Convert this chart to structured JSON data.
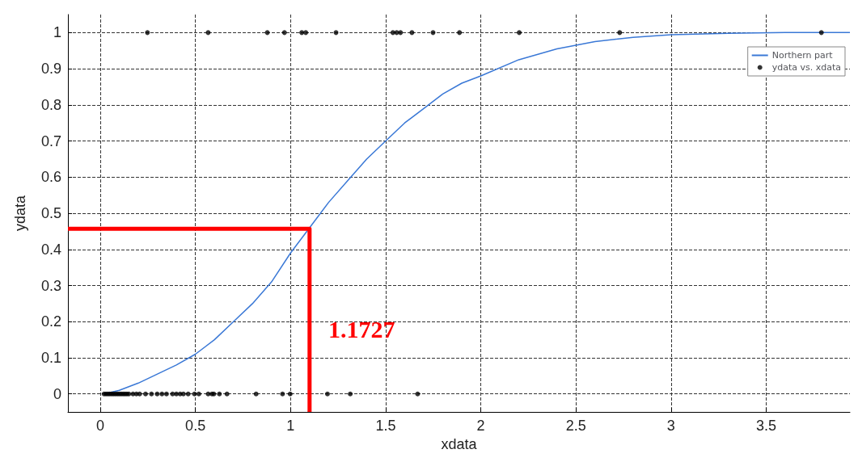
{
  "chart_data": {
    "type": "scatter",
    "xlabel": "xdata",
    "ylabel": "ydata",
    "xlim": [
      -0.17,
      3.94
    ],
    "ylim": [
      -0.05,
      1.05
    ],
    "xticks": [
      0,
      0.5,
      1,
      1.5,
      2,
      2.5,
      3,
      3.5
    ],
    "yticks": [
      0,
      0.1,
      0.2,
      0.3,
      0.4,
      0.5,
      0.6,
      0.7,
      0.8,
      0.9,
      1
    ],
    "grid": true,
    "legend": "top right",
    "annotations": [
      "1.1727"
    ],
    "series": [
      {
        "name": "Northern part",
        "type": "line",
        "color": "#3a78d6",
        "marker": "none",
        "line_style": "solid",
        "x": [
          0.02,
          0.1,
          0.2,
          0.3,
          0.4,
          0.5,
          0.6,
          0.7,
          0.8,
          0.9,
          1.0,
          1.1,
          1.2,
          1.3,
          1.4,
          1.5,
          1.6,
          1.7,
          1.8,
          1.9,
          2.0,
          2.2,
          2.4,
          2.6,
          2.8,
          3.0,
          3.3,
          3.6,
          3.94
        ],
        "values": [
          0,
          0.01,
          0.03,
          0.055,
          0.08,
          0.11,
          0.15,
          0.2,
          0.25,
          0.31,
          0.39,
          0.46,
          0.53,
          0.59,
          0.65,
          0.7,
          0.75,
          0.79,
          0.83,
          0.86,
          0.88,
          0.925,
          0.955,
          0.975,
          0.987,
          0.994,
          0.998,
          1,
          1
        ]
      },
      {
        "name": "ydata vs. xdata",
        "color": "#000000",
        "marker": "circle",
        "x": [
          0.248,
          0.567,
          0.878,
          0.968,
          1.059,
          1.08,
          1.239,
          1.538,
          1.558,
          1.578,
          1.638,
          1.749,
          1.888,
          2.202,
          2.73,
          3.79,
          0.02,
          0.03,
          0.04,
          0.05,
          0.06,
          0.07,
          0.08,
          0.09,
          0.1,
          0.11,
          0.12,
          0.13,
          0.14,
          0.15,
          0.172,
          0.19,
          0.207,
          0.238,
          0.269,
          0.299,
          0.324,
          0.348,
          0.38,
          0.4,
          0.42,
          0.437,
          0.462,
          0.495,
          0.518,
          0.567,
          0.587,
          0.597,
          0.626,
          0.666,
          0.819,
          0.958,
          0.998,
          1.194,
          1.314,
          1.668
        ],
        "values": [
          1,
          1,
          1,
          1,
          1,
          1,
          1,
          1,
          1,
          1,
          1,
          1,
          1,
          1,
          1,
          1,
          0,
          0,
          0,
          0,
          0,
          0,
          0,
          0,
          0,
          0,
          0,
          0,
          0,
          0,
          0,
          0,
          0,
          0,
          0,
          0,
          0,
          0,
          0,
          0,
          0,
          0,
          0,
          0,
          0,
          0,
          0,
          0,
          0,
          0,
          0,
          0,
          0,
          0,
          0,
          0
        ]
      },
      {
        "type": "line",
        "color": "#ff0000",
        "marker": "none",
        "line_style": "solid",
        "x": [
          -0.17,
          1.1,
          1.1
        ],
        "values": [
          0.457,
          0.457,
          -0.05
        ]
      }
    ]
  }
}
